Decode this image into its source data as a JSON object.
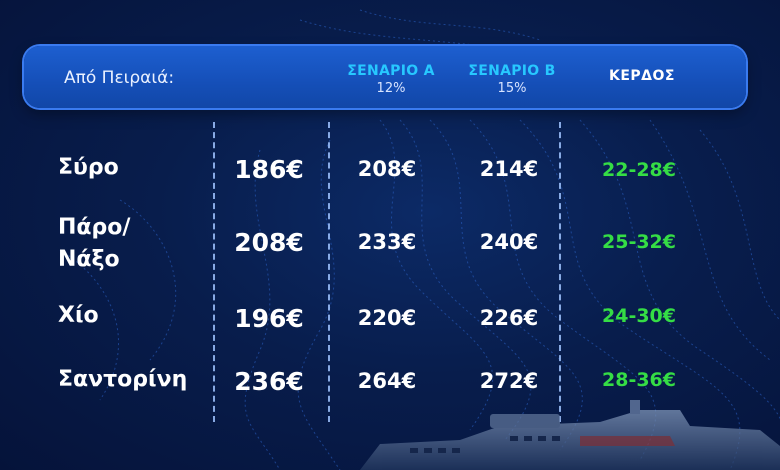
{
  "header": {
    "origin_label": "Από Πειραιά:",
    "scenario_a_title": "ΣΕΝΑΡΙΟ Α",
    "scenario_a_rate": "12%",
    "scenario_b_title": "ΣΕΝΑΡΙΟ Β",
    "scenario_b_rate": "15%",
    "profit_title": "ΚΕΡΔΟΣ"
  },
  "rows": [
    {
      "destination": "Σύρο",
      "current": "186€",
      "scenario_a": "208€",
      "scenario_b": "214€",
      "profit": "22-28€"
    },
    {
      "destination_line1": "Πάρο/",
      "destination_line2": "Νάξο",
      "current": "208€",
      "scenario_a": "233€",
      "scenario_b": "240€",
      "profit": "25-32€"
    },
    {
      "destination": "Χίο",
      "current": "196€",
      "scenario_a": "220€",
      "scenario_b": "226€",
      "profit": "24-30€"
    },
    {
      "destination": "Σαντορίνη",
      "current": "236€",
      "scenario_a": "264€",
      "scenario_b": "272€",
      "profit": "28-36€"
    }
  ],
  "colors": {
    "background": "#081d4c",
    "header": "#1d5fd0",
    "scenario_title": "#27c8ff",
    "profit": "#35dd45"
  }
}
